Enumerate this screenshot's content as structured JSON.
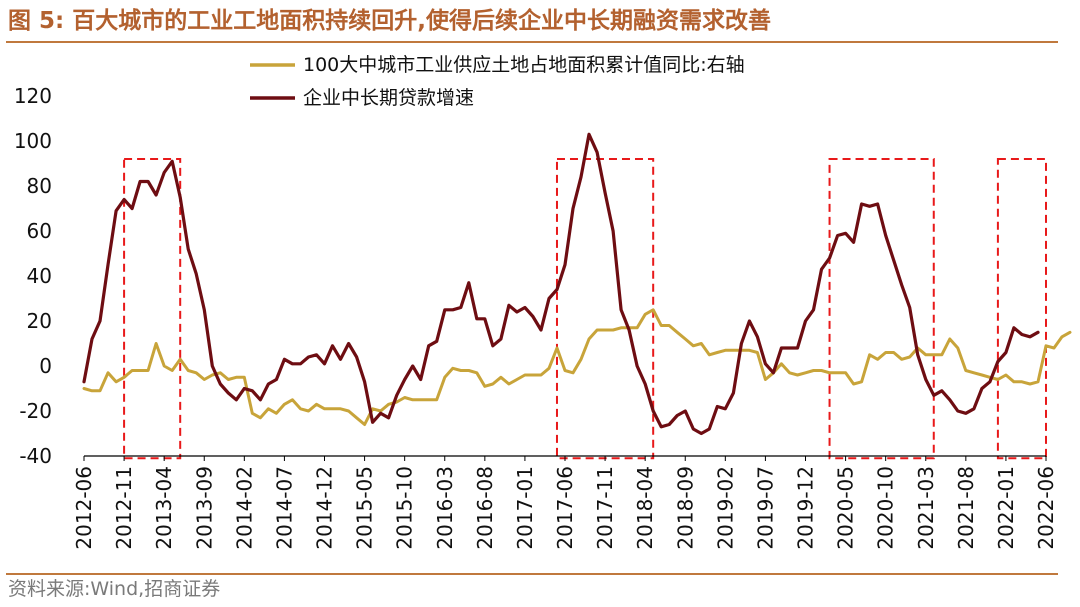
{
  "header": {
    "figure_label": "图 5:",
    "title": "百大城市的工业工地面积持续回升,使得后续企业中长期融资需求改善"
  },
  "footer": {
    "source": "资料来源:Wind,招商证券"
  },
  "colors": {
    "title": "#b3612f",
    "rule": "#c0793d",
    "series_gold": "#c8a43a",
    "series_maroon": "#6e0d12",
    "highlight_box": "#e8191a"
  },
  "chart_data": {
    "type": "line",
    "title": "百大城市的工业工地面积持续回升,使得后续企业中长期融资需求改善",
    "ylim": [
      -40,
      120
    ],
    "yticks": [
      -40,
      -20,
      0,
      20,
      40,
      60,
      80,
      100,
      120
    ],
    "grid": false,
    "legend_position": "top",
    "x_tick_labels": [
      "2012-06",
      "2012-11",
      "2013-04",
      "2013-09",
      "2014-02",
      "2014-07",
      "2014-12",
      "2015-05",
      "2015-10",
      "2016-03",
      "2016-08",
      "2017-01",
      "2017-06",
      "2017-11",
      "2018-04",
      "2018-09",
      "2019-02",
      "2019-07",
      "2019-12",
      "2020-05",
      "2020-10",
      "2021-03",
      "2021-08",
      "2022-01",
      "2022-06"
    ],
    "x_start": "2012-06",
    "x_end": "2022-06",
    "series": [
      {
        "name": "100大中城市工业供应土地占地面积累计值同比:右轴",
        "color": "#c8a43a",
        "values": [
          -10,
          -11,
          -11,
          -3,
          -7,
          -5,
          -2,
          -2,
          -2,
          10,
          0,
          -2,
          3,
          -2,
          -3,
          -6,
          -4,
          -3,
          -6,
          -5,
          -5,
          -21,
          -23,
          -19,
          -21,
          -17,
          -15,
          -19,
          -20,
          -17,
          -19,
          -19,
          -19,
          -20,
          -23,
          -26,
          -19,
          -20,
          -17,
          -16,
          -14,
          -15,
          -15,
          -15,
          -15,
          -5,
          -1,
          -2,
          -2,
          -3,
          -9,
          -8,
          -5,
          -8,
          -6,
          -4,
          -4,
          -4,
          -1,
          8,
          -2,
          -3,
          3,
          12,
          16,
          16,
          16,
          17,
          17,
          17,
          23,
          25,
          18,
          18,
          15,
          12,
          9,
          10,
          5,
          6,
          7,
          7,
          7,
          7,
          6,
          -6,
          -3,
          1,
          -3,
          -4,
          -3,
          -2,
          -2,
          -3,
          -3,
          -3,
          -8,
          -7,
          5,
          3,
          6,
          6,
          3,
          4,
          8,
          5,
          5,
          5,
          12,
          8,
          -2,
          -3,
          -4,
          -5,
          -6,
          -4,
          -7,
          -7,
          -8,
          -7,
          9,
          8,
          13,
          15
        ]
      },
      {
        "name": "企业中长期贷款增速",
        "color": "#6e0d12",
        "values": [
          -7,
          12,
          20,
          45,
          69,
          74,
          70,
          82,
          82,
          76,
          86,
          91,
          75,
          52,
          41,
          25,
          0,
          -8,
          -12,
          -15,
          -10,
          -11,
          -15,
          -8,
          -6,
          3,
          1,
          1,
          4,
          5,
          1,
          9,
          3,
          10,
          4,
          -7,
          -25,
          -21,
          -23,
          -13,
          -6,
          0,
          -6,
          9,
          11,
          25,
          25,
          26,
          37,
          21,
          21,
          9,
          12,
          27,
          24,
          26,
          22,
          16,
          30,
          34,
          45,
          70,
          84,
          103,
          95,
          77,
          60,
          25,
          16,
          0,
          -8,
          -20,
          -27,
          -26,
          -22,
          -20,
          -28,
          -30,
          -28,
          -18,
          -19,
          -12,
          10,
          20,
          13,
          1,
          -3,
          8,
          8,
          8,
          20,
          25,
          43,
          48,
          58,
          59,
          55,
          72,
          71,
          72,
          58,
          47,
          36,
          26,
          5,
          -6,
          -13,
          -11,
          -15,
          -20,
          -21,
          -19,
          -10,
          -7,
          2,
          6,
          17,
          14,
          13,
          15
        ]
      }
    ],
    "highlight_boxes": [
      {
        "start": "2012-11",
        "end": "2013-06",
        "y_top": 92,
        "y_bottom": -41
      },
      {
        "start": "2017-05",
        "end": "2018-05",
        "y_top": 92,
        "y_bottom": -41
      },
      {
        "start": "2020-03",
        "end": "2021-04",
        "y_top": 92,
        "y_bottom": -41
      },
      {
        "start": "2021-12",
        "end": "2022-06",
        "y_top": 92,
        "y_bottom": -41
      }
    ]
  }
}
